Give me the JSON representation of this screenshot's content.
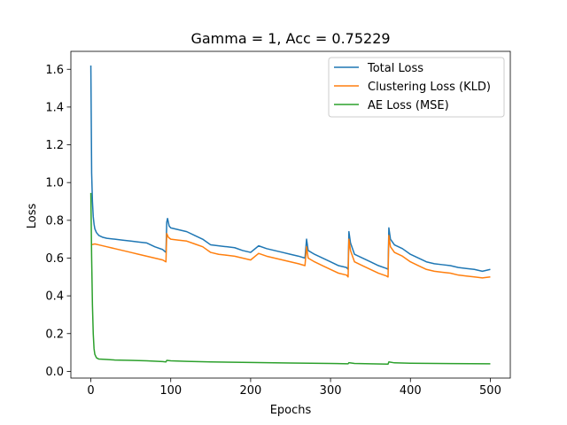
{
  "chart_data": {
    "type": "line",
    "title": "Gamma = 1, Acc = 0.75229",
    "xlabel": "Epochs",
    "ylabel": "Loss",
    "xlim": [
      -25,
      525
    ],
    "ylim": [
      -0.0356,
      1.695
    ],
    "xticks": [
      0,
      100,
      200,
      300,
      400,
      500
    ],
    "yticks": [
      0.0,
      0.2,
      0.4,
      0.6,
      0.8,
      1.0,
      1.2,
      1.4,
      1.6
    ],
    "ytick_labels": [
      "0.0",
      "0.2",
      "0.4",
      "0.6",
      "0.8",
      "1.0",
      "1.2",
      "1.4",
      "1.6"
    ],
    "grid": false,
    "legend_position": "upper right",
    "series": [
      {
        "name": "Total Loss",
        "color": "#1f77b4",
        "points": [
          [
            0,
            1.62
          ],
          [
            1,
            1.05
          ],
          [
            2,
            0.9
          ],
          [
            3,
            0.82
          ],
          [
            4,
            0.78
          ],
          [
            5,
            0.755
          ],
          [
            7,
            0.735
          ],
          [
            10,
            0.72
          ],
          [
            15,
            0.71
          ],
          [
            20,
            0.705
          ],
          [
            30,
            0.7
          ],
          [
            40,
            0.695
          ],
          [
            50,
            0.69
          ],
          [
            60,
            0.685
          ],
          [
            70,
            0.68
          ],
          [
            80,
            0.66
          ],
          [
            90,
            0.645
          ],
          [
            94,
            0.63
          ],
          [
            95,
            0.79
          ],
          [
            96,
            0.81
          ],
          [
            98,
            0.77
          ],
          [
            100,
            0.76
          ],
          [
            110,
            0.75
          ],
          [
            120,
            0.74
          ],
          [
            130,
            0.72
          ],
          [
            140,
            0.7
          ],
          [
            150,
            0.67
          ],
          [
            160,
            0.665
          ],
          [
            170,
            0.66
          ],
          [
            180,
            0.655
          ],
          [
            190,
            0.64
          ],
          [
            200,
            0.63
          ],
          [
            210,
            0.665
          ],
          [
            220,
            0.65
          ],
          [
            230,
            0.64
          ],
          [
            240,
            0.63
          ],
          [
            250,
            0.62
          ],
          [
            260,
            0.61
          ],
          [
            268,
            0.6
          ],
          [
            270,
            0.7
          ],
          [
            272,
            0.64
          ],
          [
            280,
            0.62
          ],
          [
            290,
            0.6
          ],
          [
            300,
            0.58
          ],
          [
            310,
            0.56
          ],
          [
            320,
            0.55
          ],
          [
            322,
            0.54
          ],
          [
            323,
            0.74
          ],
          [
            325,
            0.68
          ],
          [
            330,
            0.62
          ],
          [
            340,
            0.6
          ],
          [
            350,
            0.58
          ],
          [
            360,
            0.56
          ],
          [
            370,
            0.545
          ],
          [
            372,
            0.54
          ],
          [
            373,
            0.76
          ],
          [
            375,
            0.7
          ],
          [
            380,
            0.67
          ],
          [
            390,
            0.65
          ],
          [
            400,
            0.62
          ],
          [
            410,
            0.6
          ],
          [
            420,
            0.58
          ],
          [
            430,
            0.57
          ],
          [
            440,
            0.565
          ],
          [
            450,
            0.56
          ],
          [
            460,
            0.55
          ],
          [
            470,
            0.545
          ],
          [
            480,
            0.54
          ],
          [
            490,
            0.53
          ],
          [
            500,
            0.54
          ]
        ]
      },
      {
        "name": "Clustering Loss (KLD)",
        "color": "#ff7f0e",
        "points": [
          [
            0,
            0.67
          ],
          [
            5,
            0.675
          ],
          [
            10,
            0.67
          ],
          [
            20,
            0.66
          ],
          [
            30,
            0.65
          ],
          [
            40,
            0.64
          ],
          [
            50,
            0.63
          ],
          [
            60,
            0.62
          ],
          [
            70,
            0.61
          ],
          [
            80,
            0.6
          ],
          [
            90,
            0.59
          ],
          [
            94,
            0.58
          ],
          [
            95,
            0.73
          ],
          [
            97,
            0.71
          ],
          [
            100,
            0.7
          ],
          [
            110,
            0.695
          ],
          [
            120,
            0.69
          ],
          [
            130,
            0.675
          ],
          [
            140,
            0.66
          ],
          [
            150,
            0.63
          ],
          [
            160,
            0.62
          ],
          [
            170,
            0.615
          ],
          [
            180,
            0.61
          ],
          [
            190,
            0.6
          ],
          [
            200,
            0.59
          ],
          [
            210,
            0.625
          ],
          [
            220,
            0.61
          ],
          [
            230,
            0.6
          ],
          [
            240,
            0.59
          ],
          [
            250,
            0.58
          ],
          [
            260,
            0.57
          ],
          [
            268,
            0.56
          ],
          [
            270,
            0.66
          ],
          [
            272,
            0.6
          ],
          [
            280,
            0.58
          ],
          [
            290,
            0.56
          ],
          [
            300,
            0.54
          ],
          [
            310,
            0.52
          ],
          [
            320,
            0.51
          ],
          [
            322,
            0.5
          ],
          [
            323,
            0.7
          ],
          [
            325,
            0.64
          ],
          [
            330,
            0.58
          ],
          [
            340,
            0.56
          ],
          [
            350,
            0.54
          ],
          [
            360,
            0.52
          ],
          [
            370,
            0.505
          ],
          [
            372,
            0.5
          ],
          [
            373,
            0.72
          ],
          [
            375,
            0.66
          ],
          [
            380,
            0.63
          ],
          [
            390,
            0.61
          ],
          [
            400,
            0.58
          ],
          [
            410,
            0.56
          ],
          [
            420,
            0.54
          ],
          [
            430,
            0.53
          ],
          [
            440,
            0.525
          ],
          [
            450,
            0.52
          ],
          [
            460,
            0.51
          ],
          [
            470,
            0.505
          ],
          [
            480,
            0.5
          ],
          [
            490,
            0.495
          ],
          [
            500,
            0.5
          ]
        ]
      },
      {
        "name": "AE Loss (MSE)",
        "color": "#2ca02c",
        "points": [
          [
            0,
            0.945
          ],
          [
            1,
            0.6
          ],
          [
            2,
            0.35
          ],
          [
            3,
            0.2
          ],
          [
            4,
            0.12
          ],
          [
            5,
            0.09
          ],
          [
            7,
            0.072
          ],
          [
            10,
            0.065
          ],
          [
            20,
            0.063
          ],
          [
            30,
            0.06
          ],
          [
            50,
            0.058
          ],
          [
            70,
            0.056
          ],
          [
            90,
            0.052
          ],
          [
            94,
            0.05
          ],
          [
            95,
            0.058
          ],
          [
            100,
            0.056
          ],
          [
            120,
            0.053
          ],
          [
            150,
            0.05
          ],
          [
            200,
            0.047
          ],
          [
            250,
            0.044
          ],
          [
            300,
            0.042
          ],
          [
            322,
            0.04
          ],
          [
            323,
            0.046
          ],
          [
            330,
            0.042
          ],
          [
            350,
            0.04
          ],
          [
            372,
            0.038
          ],
          [
            373,
            0.05
          ],
          [
            380,
            0.045
          ],
          [
            400,
            0.043
          ],
          [
            450,
            0.041
          ],
          [
            500,
            0.04
          ]
        ]
      }
    ]
  }
}
